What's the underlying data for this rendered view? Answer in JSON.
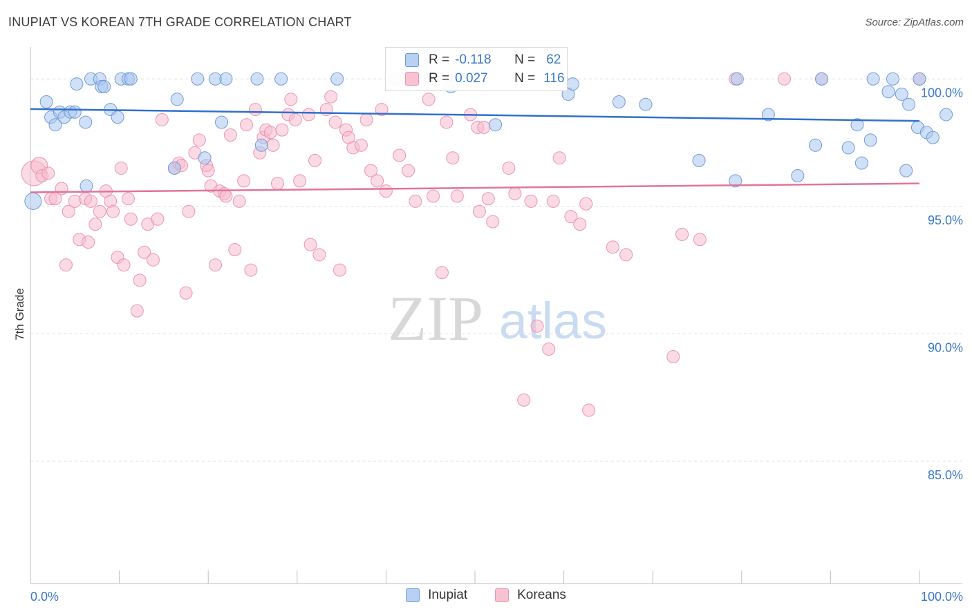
{
  "header": {
    "title": "INUPIAT VS KOREAN 7TH GRADE CORRELATION CHART",
    "source": "Source: ZipAtlas.com"
  },
  "watermark": {
    "zip": "ZIP",
    "atlas": "atlas"
  },
  "legend": {
    "rows": [
      {
        "r_label": "R =",
        "r_value": "-0.118",
        "n_label": "N =",
        "n_value": "62"
      },
      {
        "r_label": "R =",
        "r_value": "0.027",
        "n_label": "N =",
        "n_value": "116"
      }
    ]
  },
  "bottom_legend": {
    "inupiat": "Inupiat",
    "koreans": "Koreans"
  },
  "colors": {
    "inupiat_fill": "#a9c6ee",
    "inupiat_stroke": "#6f9bd9",
    "inupiat_line": "#2f6fce",
    "koreans_fill": "#f6bccd",
    "koreans_stroke": "#ea94ae",
    "koreans_line": "#e2739a",
    "tick_label": "#3a78c9",
    "grid": "#dddddd"
  },
  "chart_data": {
    "type": "scatter",
    "title": "INUPIAT VS KOREAN 7TH GRADE CORRELATION CHART",
    "xlabel": "",
    "ylabel": "7th Grade",
    "xlim": [
      0,
      100
    ],
    "ylim": [
      80.2,
      101.2
    ],
    "x_tick_labels": [
      "0.0%",
      "100.0%"
    ],
    "y_ticks": [
      100,
      95,
      90,
      85
    ],
    "y_tick_labels": [
      "100.0%",
      "95.0%",
      "90.0%",
      "85.0%"
    ],
    "grid": true,
    "legend_position": "top-center",
    "series": [
      {
        "name": "Inupiat",
        "r": -0.118,
        "n": 62,
        "trend": {
          "x": [
            0,
            100
          ],
          "y": [
            98.82,
            98.35
          ]
        },
        "points": [
          [
            0.3,
            95.2,
            2
          ],
          [
            1.8,
            99.1,
            1
          ],
          [
            2.3,
            98.5,
            1
          ],
          [
            2.8,
            98.2,
            1
          ],
          [
            3.3,
            98.7,
            1
          ],
          [
            3.8,
            98.5,
            1
          ],
          [
            4.5,
            98.7,
            1
          ],
          [
            5.0,
            98.7,
            1
          ],
          [
            5.2,
            99.8,
            1
          ],
          [
            6.2,
            98.3,
            1
          ],
          [
            6.3,
            95.8,
            1
          ],
          [
            6.8,
            100.0,
            1
          ],
          [
            7.8,
            100.0,
            1
          ],
          [
            8.0,
            99.7,
            1
          ],
          [
            8.3,
            99.7,
            1
          ],
          [
            9.0,
            98.8,
            1
          ],
          [
            9.8,
            98.5,
            1
          ],
          [
            10.2,
            100.0,
            1
          ],
          [
            11.0,
            100.0,
            1
          ],
          [
            11.3,
            100.0,
            1
          ],
          [
            16.2,
            96.5,
            1
          ],
          [
            16.5,
            99.2,
            1
          ],
          [
            18.8,
            100.0,
            1
          ],
          [
            19.6,
            96.9,
            1
          ],
          [
            20.8,
            100.0,
            1
          ],
          [
            21.5,
            98.3,
            1
          ],
          [
            22.0,
            100.0,
            1
          ],
          [
            25.5,
            100.0,
            1
          ],
          [
            26.0,
            97.4,
            1
          ],
          [
            28.2,
            100.0,
            1
          ],
          [
            34.5,
            100.0,
            1
          ],
          [
            47.3,
            99.7,
            1
          ],
          [
            49.0,
            100.0,
            1
          ],
          [
            52.3,
            98.2,
            1
          ],
          [
            60.5,
            99.4,
            1
          ],
          [
            61.0,
            99.8,
            1
          ],
          [
            66.2,
            99.1,
            1
          ],
          [
            69.2,
            99.0,
            1
          ],
          [
            75.2,
            96.8,
            1
          ],
          [
            79.3,
            96.0,
            1
          ],
          [
            79.5,
            100.0,
            1
          ],
          [
            83.0,
            98.6,
            1
          ],
          [
            86.3,
            96.2,
            1
          ],
          [
            88.3,
            97.4,
            1
          ],
          [
            89.0,
            100.0,
            1
          ],
          [
            92.0,
            97.3,
            1
          ],
          [
            93.0,
            98.2,
            1
          ],
          [
            93.5,
            96.7,
            1
          ],
          [
            94.5,
            97.6,
            1
          ],
          [
            94.8,
            100.0,
            1
          ],
          [
            96.5,
            99.5,
            1
          ],
          [
            97.0,
            100.0,
            1
          ],
          [
            98.0,
            99.4,
            1
          ],
          [
            98.5,
            96.4,
            1
          ],
          [
            98.8,
            99.0,
            1
          ],
          [
            99.8,
            98.1,
            1
          ],
          [
            100.0,
            100.0,
            1
          ],
          [
            100.8,
            97.9,
            1
          ],
          [
            101.5,
            97.7,
            1
          ],
          [
            103.0,
            98.6,
            1
          ]
        ]
      },
      {
        "name": "Koreans",
        "r": 0.027,
        "n": 116,
        "trend": {
          "x": [
            0,
            100
          ],
          "y": [
            95.55,
            95.9
          ]
        },
        "points": [
          [
            0.4,
            96.3,
            3
          ],
          [
            1.0,
            96.6,
            2
          ],
          [
            1.3,
            96.2,
            1
          ],
          [
            2.0,
            96.3,
            1
          ],
          [
            2.3,
            95.3,
            1
          ],
          [
            2.8,
            95.3,
            1
          ],
          [
            3.5,
            95.7,
            1
          ],
          [
            4.0,
            92.7,
            1
          ],
          [
            4.3,
            94.8,
            1
          ],
          [
            5.0,
            95.2,
            1
          ],
          [
            5.5,
            93.7,
            1
          ],
          [
            6.2,
            95.3,
            1
          ],
          [
            6.5,
            93.6,
            1
          ],
          [
            6.8,
            95.2,
            1
          ],
          [
            7.3,
            94.3,
            1
          ],
          [
            7.8,
            94.8,
            1
          ],
          [
            8.5,
            95.6,
            1
          ],
          [
            9.0,
            95.2,
            1
          ],
          [
            9.3,
            94.8,
            1
          ],
          [
            9.8,
            93.0,
            1
          ],
          [
            10.2,
            96.5,
            1
          ],
          [
            10.5,
            92.7,
            1
          ],
          [
            11.0,
            95.3,
            1
          ],
          [
            11.3,
            94.5,
            1
          ],
          [
            12.0,
            90.9,
            1
          ],
          [
            12.3,
            92.1,
            1
          ],
          [
            12.8,
            93.2,
            1
          ],
          [
            13.2,
            94.3,
            1
          ],
          [
            13.8,
            92.9,
            1
          ],
          [
            14.3,
            94.5,
            1
          ],
          [
            14.8,
            98.4,
            1
          ],
          [
            16.2,
            96.5,
            1
          ],
          [
            16.7,
            96.7,
            1
          ],
          [
            17.0,
            96.6,
            1
          ],
          [
            17.5,
            91.6,
            1
          ],
          [
            17.8,
            94.8,
            1
          ],
          [
            18.5,
            97.1,
            1
          ],
          [
            19.0,
            97.6,
            1
          ],
          [
            19.8,
            96.6,
            1
          ],
          [
            20.0,
            96.4,
            1
          ],
          [
            20.3,
            95.8,
            1
          ],
          [
            20.8,
            92.7,
            1
          ],
          [
            21.3,
            95.6,
            1
          ],
          [
            21.8,
            95.5,
            1
          ],
          [
            22.0,
            95.4,
            1
          ],
          [
            22.5,
            97.8,
            1
          ],
          [
            23.0,
            93.3,
            1
          ],
          [
            23.5,
            95.2,
            1
          ],
          [
            24.0,
            96.0,
            1
          ],
          [
            24.3,
            98.2,
            1
          ],
          [
            24.8,
            92.5,
            1
          ],
          [
            25.3,
            98.8,
            1
          ],
          [
            25.8,
            97.1,
            1
          ],
          [
            26.2,
            97.7,
            1
          ],
          [
            26.5,
            98.0,
            1
          ],
          [
            27.0,
            97.9,
            1
          ],
          [
            27.3,
            97.4,
            1
          ],
          [
            27.8,
            95.9,
            1
          ],
          [
            28.3,
            98.0,
            1
          ],
          [
            29.0,
            98.6,
            1
          ],
          [
            29.3,
            99.2,
            1
          ],
          [
            29.8,
            98.4,
            1
          ],
          [
            30.3,
            96.0,
            1
          ],
          [
            31.3,
            98.6,
            1
          ],
          [
            31.5,
            93.5,
            1
          ],
          [
            32.0,
            96.8,
            1
          ],
          [
            32.5,
            93.1,
            1
          ],
          [
            33.3,
            98.8,
            1
          ],
          [
            33.8,
            99.3,
            1
          ],
          [
            34.3,
            98.3,
            1
          ],
          [
            34.8,
            92.5,
            1
          ],
          [
            35.5,
            98.0,
            1
          ],
          [
            35.8,
            97.7,
            1
          ],
          [
            36.3,
            97.3,
            1
          ],
          [
            37.2,
            97.4,
            1
          ],
          [
            37.8,
            98.4,
            1
          ],
          [
            38.3,
            96.4,
            1
          ],
          [
            39.0,
            96.0,
            1
          ],
          [
            39.5,
            98.8,
            1
          ],
          [
            40.0,
            95.6,
            1
          ],
          [
            41.0,
            100.0,
            1
          ],
          [
            41.5,
            97.0,
            1
          ],
          [
            42.5,
            96.4,
            1
          ],
          [
            43.3,
            95.2,
            1
          ],
          [
            44.8,
            99.2,
            1
          ],
          [
            45.3,
            95.4,
            1
          ],
          [
            46.3,
            92.4,
            1
          ],
          [
            46.8,
            98.3,
            1
          ],
          [
            47.5,
            96.9,
            1
          ],
          [
            48.0,
            95.4,
            1
          ],
          [
            49.5,
            98.6,
            1
          ],
          [
            50.3,
            98.1,
            1
          ],
          [
            50.5,
            94.8,
            1
          ],
          [
            51.0,
            98.1,
            1
          ],
          [
            51.5,
            95.3,
            1
          ],
          [
            52.0,
            94.4,
            1
          ],
          [
            53.8,
            96.5,
            1
          ],
          [
            54.5,
            95.5,
            1
          ],
          [
            55.5,
            87.4,
            1
          ],
          [
            56.3,
            95.2,
            1
          ],
          [
            57.0,
            90.3,
            1
          ],
          [
            58.3,
            89.4,
            1
          ],
          [
            58.8,
            95.2,
            1
          ],
          [
            59.5,
            96.9,
            1
          ],
          [
            60.8,
            94.6,
            1
          ],
          [
            61.8,
            94.3,
            1
          ],
          [
            62.5,
            95.1,
            1
          ],
          [
            62.8,
            87.0,
            1
          ],
          [
            65.5,
            93.4,
            1
          ],
          [
            67.0,
            93.1,
            1
          ],
          [
            72.3,
            89.1,
            1
          ],
          [
            73.3,
            93.9,
            1
          ],
          [
            75.3,
            93.7,
            1
          ],
          [
            79.3,
            100.0,
            1
          ],
          [
            84.8,
            100.0,
            1
          ],
          [
            89.0,
            100.0,
            1
          ],
          [
            100.0,
            100.0,
            1
          ]
        ]
      }
    ]
  }
}
